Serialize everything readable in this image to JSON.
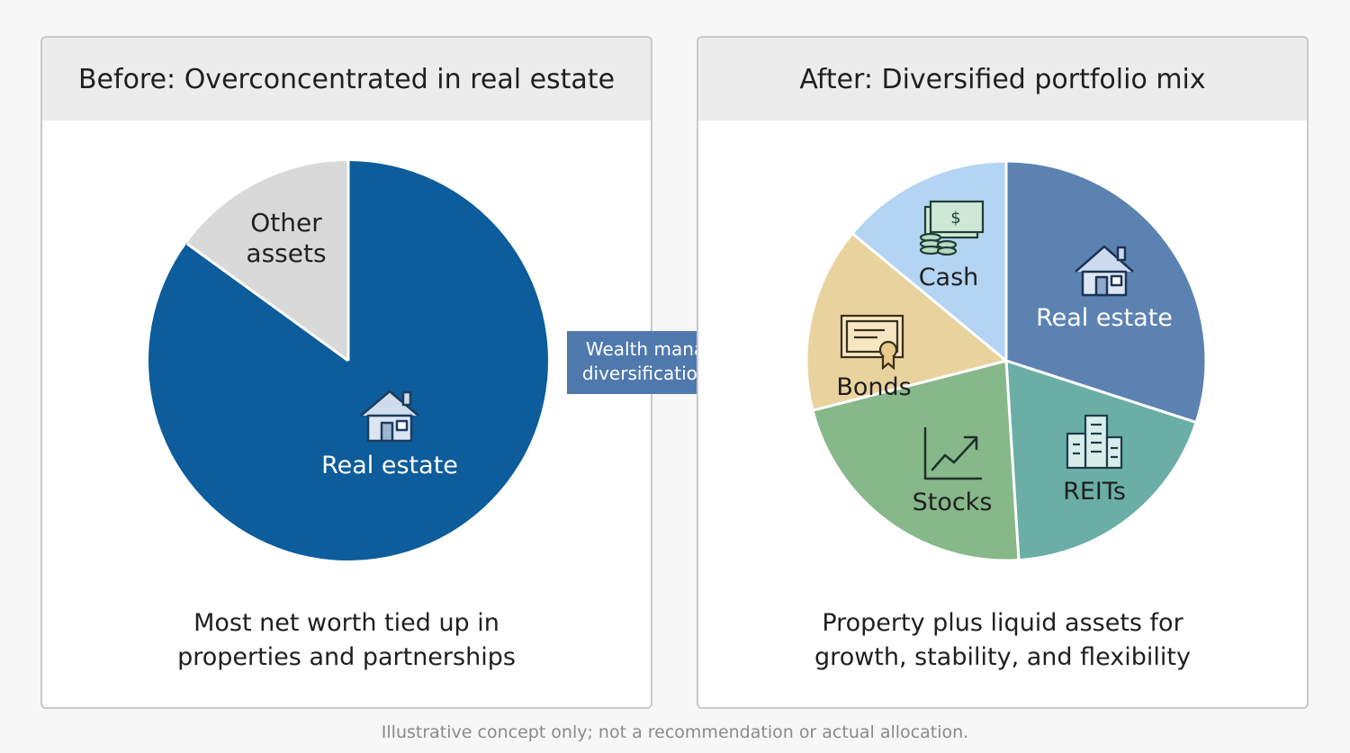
{
  "footnote": "Illustrative concept only; not a recommendation or actual allocation.",
  "arrow": {
    "line1": "Wealth manager’s",
    "line2": "diversification plan",
    "color": "#4f79ad"
  },
  "chart_data": [
    {
      "type": "pie",
      "title": "Before: Overconcentrated in real estate",
      "caption_line1": "Most net worth tied up in",
      "caption_line2": "properties and partnerships",
      "slices": [
        {
          "label": "Real estate",
          "value": 85,
          "color": "#0d5c9c",
          "icon": "house-icon"
        },
        {
          "label_lines": [
            "Other",
            "assets"
          ],
          "label": "Other assets",
          "value": 15,
          "color": "#d9d9d9"
        }
      ]
    },
    {
      "type": "pie",
      "title": "After: Diversified portfolio mix",
      "caption_line1": "Property plus liquid assets for",
      "caption_line2": "growth, stability, and flexibility",
      "slices": [
        {
          "label": "Real estate",
          "value": 30,
          "color": "#5c82b2",
          "icon": "house-icon"
        },
        {
          "label": "REITs",
          "value": 19,
          "color": "#6aaea6",
          "icon": "buildings-icon"
        },
        {
          "label": "Stocks",
          "value": 22,
          "color": "#86b88a",
          "icon": "line-chart-icon"
        },
        {
          "label": "Bonds",
          "value": 15,
          "color": "#e8d29e",
          "icon": "certificate-icon"
        },
        {
          "label": "Cash",
          "value": 14,
          "color": "#b3d4f2",
          "icon": "cash-coins-icon"
        }
      ]
    }
  ]
}
